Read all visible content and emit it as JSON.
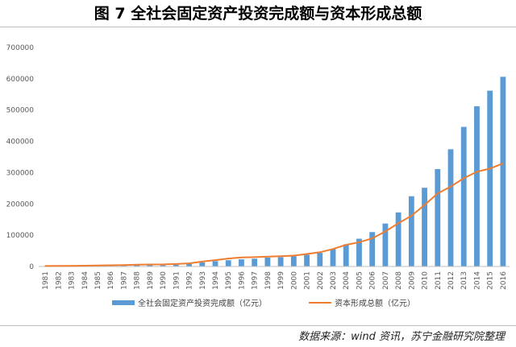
{
  "figure": {
    "title": "图 7  全社会固定资产投资完成额与资本形成总额",
    "source": "数据来源：wind 资讯，苏宁金融研究院整理"
  },
  "chart_data": {
    "type": "bar",
    "categories": [
      "1981",
      "1982",
      "1983",
      "1984",
      "1985",
      "1986",
      "1987",
      "1988",
      "1989",
      "1990",
      "1991",
      "1992",
      "1993",
      "1994",
      "1995",
      "1996",
      "1997",
      "1998",
      "1999",
      "2000",
      "2001",
      "2002",
      "2003",
      "2004",
      "2005",
      "2006",
      "2007",
      "2008",
      "2009",
      "2010",
      "2011",
      "2012",
      "2013",
      "2014",
      "2015",
      "2016"
    ],
    "ylim": [
      0,
      700000
    ],
    "yticks": [
      "0",
      "100000",
      "200000",
      "300000",
      "400000",
      "500000",
      "600000",
      "700000"
    ],
    "grid": false,
    "legend_position": "bottom",
    "series": [
      {
        "name": "全社会固定资产投资完成额（亿元）",
        "type": "bar",
        "color": "#5b9bd5",
        "values": [
          961,
          1230,
          1430,
          1833,
          2543,
          3121,
          3792,
          4754,
          4410,
          4517,
          5595,
          8080,
          13072,
          17042,
          20019,
          22914,
          24941,
          28406,
          29855,
          32918,
          37214,
          43500,
          55567,
          70477,
          88774,
          109998,
          137324,
          172828,
          224599,
          251684,
          311485,
          374695,
          446294,
          512021,
          561999,
          606466
        ]
      },
      {
        "name": "资本形成总额（亿元）",
        "type": "line",
        "color": "#ed7d31",
        "values": [
          1592,
          1784,
          2039,
          2515,
          3458,
          3941,
          4462,
          5700,
          6333,
          6747,
          7868,
          10086,
          15717,
          20341,
          25470,
          28785,
          29968,
          31314,
          32952,
          34843,
          39770,
          45565,
          55963,
          69168,
          77534,
          89823,
          112047,
          138243,
          162118,
          196653,
          233327,
          255240,
          282073,
          302717,
          312836,
          329727
        ]
      }
    ]
  }
}
